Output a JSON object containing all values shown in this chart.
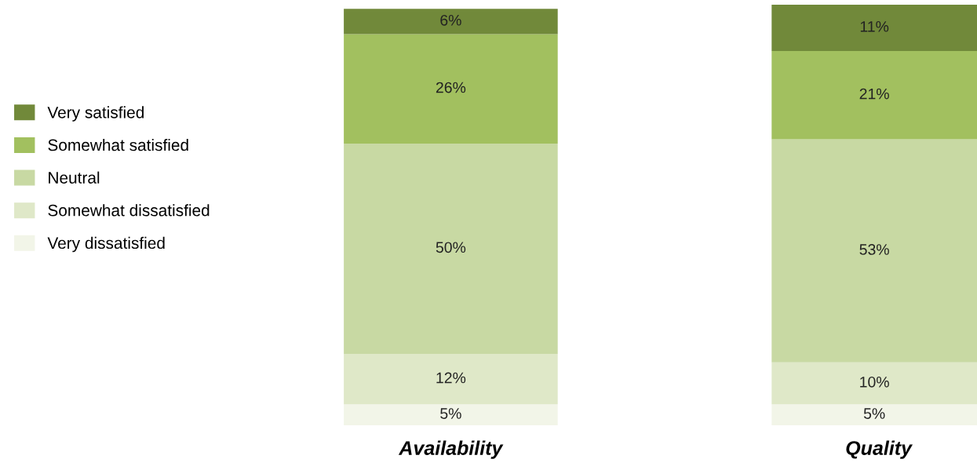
{
  "chart_data": {
    "type": "bar",
    "stacked": true,
    "categories": [
      "Availability",
      "Quality"
    ],
    "legend": "left",
    "tick_labels": "x",
    "grid": false,
    "series": [
      {
        "name": "Very dissatisfied",
        "color": "#f2f5e8",
        "values": [
          5,
          5
        ],
        "value_labels": [
          "5%",
          "5%"
        ]
      },
      {
        "name": "Somewhat dissatisfied",
        "color": "#dfe8c8",
        "values": [
          12,
          10
        ],
        "value_labels": [
          "12%",
          "10%"
        ]
      },
      {
        "name": "Neutral",
        "color": "#c8d9a3",
        "values": [
          50,
          53
        ],
        "value_labels": [
          "50%",
          "53%"
        ]
      },
      {
        "name": "Somewhat satisfied",
        "color": "#a2c05f",
        "values": [
          26,
          21
        ],
        "value_labels": [
          "26%",
          "21%"
        ]
      },
      {
        "name": "Very satisfied",
        "color": "#71893a",
        "values": [
          6,
          11
        ],
        "value_labels": [
          "6%",
          "11%"
        ]
      }
    ]
  }
}
